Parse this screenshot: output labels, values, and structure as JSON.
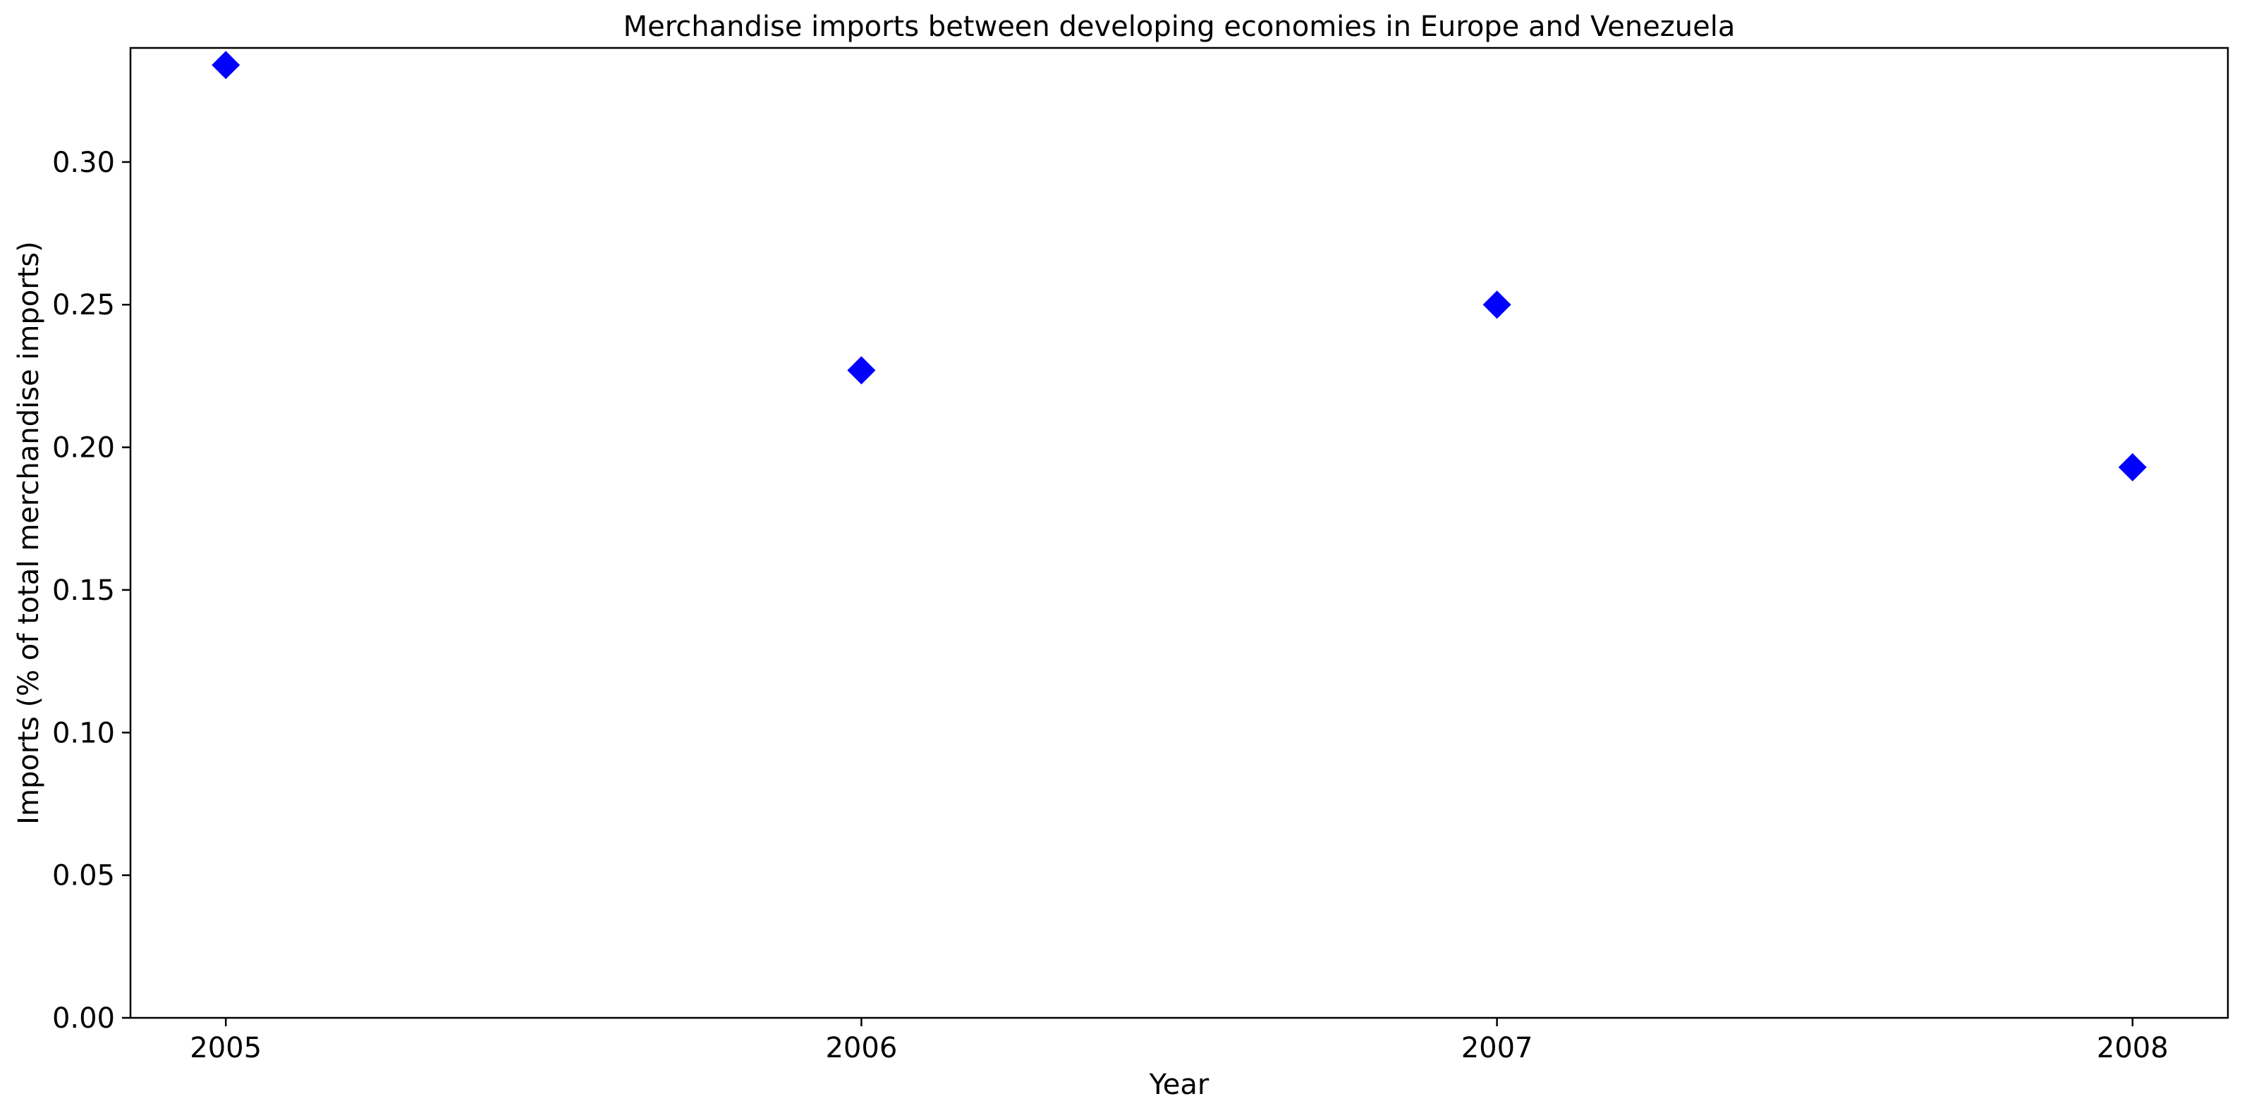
{
  "chart_data": {
    "type": "scatter",
    "title": "Merchandise imports between developing economies in Europe and Venezuela",
    "xlabel": "Year",
    "ylabel": "Imports (% of total merchandise imports)",
    "x": [
      2005,
      2006,
      2007,
      2008
    ],
    "y": [
      0.334,
      0.227,
      0.25,
      0.193
    ],
    "xlim": [
      2004.85,
      2008.15
    ],
    "ylim": [
      0,
      0.34
    ],
    "xticks": [
      "2005",
      "2006",
      "2007",
      "2008"
    ],
    "yticks": [
      "0.00",
      "0.05",
      "0.10",
      "0.15",
      "0.20",
      "0.25",
      "0.30"
    ],
    "marker": "diamond",
    "color": "#0000ff",
    "grid": false,
    "legend": "none"
  }
}
